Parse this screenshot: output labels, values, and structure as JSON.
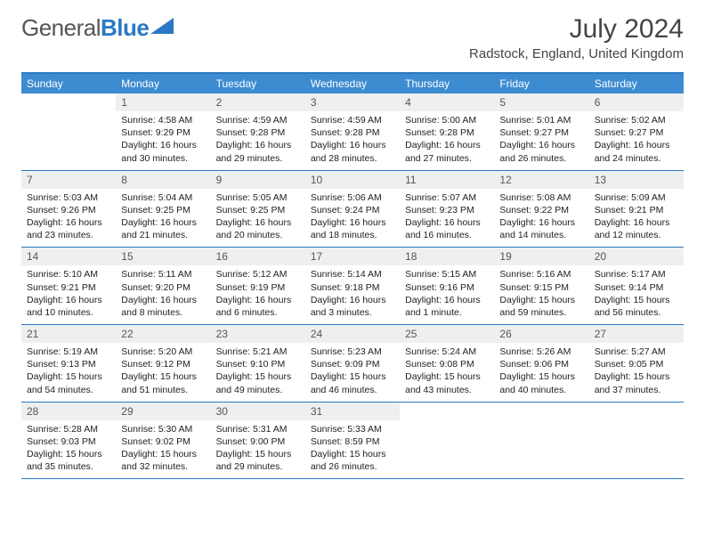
{
  "brand": {
    "word1": "General",
    "word2": "Blue",
    "word1_color": "#555555",
    "word2_color": "#2b79c2",
    "triangle_color": "#2b79c2"
  },
  "title": "July 2024",
  "location": "Radstock, England, United Kingdom",
  "colors": {
    "header_bg": "#3d8bd1",
    "border": "#2b79c2",
    "daynum_bg": "#eef0f0"
  },
  "weekdays": [
    "Sunday",
    "Monday",
    "Tuesday",
    "Wednesday",
    "Thursday",
    "Friday",
    "Saturday"
  ],
  "grid": [
    [
      {
        "n": "",
        "sr": "",
        "ss": "",
        "dl": ""
      },
      {
        "n": "1",
        "sr": "4:58 AM",
        "ss": "9:29 PM",
        "dl": "16 hours and 30 minutes."
      },
      {
        "n": "2",
        "sr": "4:59 AM",
        "ss": "9:28 PM",
        "dl": "16 hours and 29 minutes."
      },
      {
        "n": "3",
        "sr": "4:59 AM",
        "ss": "9:28 PM",
        "dl": "16 hours and 28 minutes."
      },
      {
        "n": "4",
        "sr": "5:00 AM",
        "ss": "9:28 PM",
        "dl": "16 hours and 27 minutes."
      },
      {
        "n": "5",
        "sr": "5:01 AM",
        "ss": "9:27 PM",
        "dl": "16 hours and 26 minutes."
      },
      {
        "n": "6",
        "sr": "5:02 AM",
        "ss": "9:27 PM",
        "dl": "16 hours and 24 minutes."
      }
    ],
    [
      {
        "n": "7",
        "sr": "5:03 AM",
        "ss": "9:26 PM",
        "dl": "16 hours and 23 minutes."
      },
      {
        "n": "8",
        "sr": "5:04 AM",
        "ss": "9:25 PM",
        "dl": "16 hours and 21 minutes."
      },
      {
        "n": "9",
        "sr": "5:05 AM",
        "ss": "9:25 PM",
        "dl": "16 hours and 20 minutes."
      },
      {
        "n": "10",
        "sr": "5:06 AM",
        "ss": "9:24 PM",
        "dl": "16 hours and 18 minutes."
      },
      {
        "n": "11",
        "sr": "5:07 AM",
        "ss": "9:23 PM",
        "dl": "16 hours and 16 minutes."
      },
      {
        "n": "12",
        "sr": "5:08 AM",
        "ss": "9:22 PM",
        "dl": "16 hours and 14 minutes."
      },
      {
        "n": "13",
        "sr": "5:09 AM",
        "ss": "9:21 PM",
        "dl": "16 hours and 12 minutes."
      }
    ],
    [
      {
        "n": "14",
        "sr": "5:10 AM",
        "ss": "9:21 PM",
        "dl": "16 hours and 10 minutes."
      },
      {
        "n": "15",
        "sr": "5:11 AM",
        "ss": "9:20 PM",
        "dl": "16 hours and 8 minutes."
      },
      {
        "n": "16",
        "sr": "5:12 AM",
        "ss": "9:19 PM",
        "dl": "16 hours and 6 minutes."
      },
      {
        "n": "17",
        "sr": "5:14 AM",
        "ss": "9:18 PM",
        "dl": "16 hours and 3 minutes."
      },
      {
        "n": "18",
        "sr": "5:15 AM",
        "ss": "9:16 PM",
        "dl": "16 hours and 1 minute."
      },
      {
        "n": "19",
        "sr": "5:16 AM",
        "ss": "9:15 PM",
        "dl": "15 hours and 59 minutes."
      },
      {
        "n": "20",
        "sr": "5:17 AM",
        "ss": "9:14 PM",
        "dl": "15 hours and 56 minutes."
      }
    ],
    [
      {
        "n": "21",
        "sr": "5:19 AM",
        "ss": "9:13 PM",
        "dl": "15 hours and 54 minutes."
      },
      {
        "n": "22",
        "sr": "5:20 AM",
        "ss": "9:12 PM",
        "dl": "15 hours and 51 minutes."
      },
      {
        "n": "23",
        "sr": "5:21 AM",
        "ss": "9:10 PM",
        "dl": "15 hours and 49 minutes."
      },
      {
        "n": "24",
        "sr": "5:23 AM",
        "ss": "9:09 PM",
        "dl": "15 hours and 46 minutes."
      },
      {
        "n": "25",
        "sr": "5:24 AM",
        "ss": "9:08 PM",
        "dl": "15 hours and 43 minutes."
      },
      {
        "n": "26",
        "sr": "5:26 AM",
        "ss": "9:06 PM",
        "dl": "15 hours and 40 minutes."
      },
      {
        "n": "27",
        "sr": "5:27 AM",
        "ss": "9:05 PM",
        "dl": "15 hours and 37 minutes."
      }
    ],
    [
      {
        "n": "28",
        "sr": "5:28 AM",
        "ss": "9:03 PM",
        "dl": "15 hours and 35 minutes."
      },
      {
        "n": "29",
        "sr": "5:30 AM",
        "ss": "9:02 PM",
        "dl": "15 hours and 32 minutes."
      },
      {
        "n": "30",
        "sr": "5:31 AM",
        "ss": "9:00 PM",
        "dl": "15 hours and 29 minutes."
      },
      {
        "n": "31",
        "sr": "5:33 AM",
        "ss": "8:59 PM",
        "dl": "15 hours and 26 minutes."
      },
      {
        "n": "",
        "sr": "",
        "ss": "",
        "dl": ""
      },
      {
        "n": "",
        "sr": "",
        "ss": "",
        "dl": ""
      },
      {
        "n": "",
        "sr": "",
        "ss": "",
        "dl": ""
      }
    ]
  ]
}
